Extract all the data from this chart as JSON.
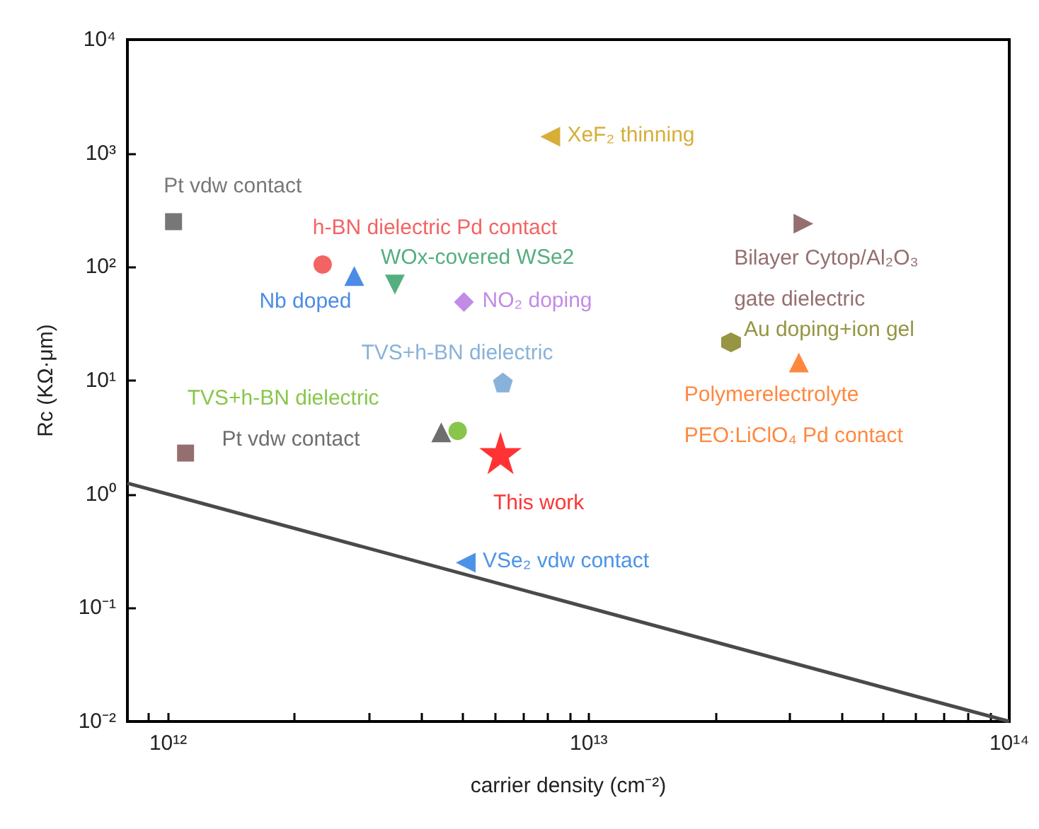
{
  "chart_data": {
    "type": "scatter",
    "xlabel": "carrier density (cm⁻²)",
    "ylabel": "Rc (KΩ·μm)",
    "log": "xy",
    "grid": false,
    "legend": false,
    "xlim": [
      800000000000.0,
      100000000000000.0
    ],
    "ylim": [
      0.01,
      10000
    ],
    "xticks": [
      {
        "value": 900000000000.0,
        "label": null
      },
      {
        "value": 1000000000000.0,
        "label": "10¹²"
      },
      {
        "value": 2000000000000.0,
        "label": null
      },
      {
        "value": 3000000000000.0,
        "label": null
      },
      {
        "value": 4000000000000.0,
        "label": null
      },
      {
        "value": 5000000000000.0,
        "label": null
      },
      {
        "value": 6000000000000.0,
        "label": null
      },
      {
        "value": 7000000000000.0,
        "label": null
      },
      {
        "value": 8000000000000.0,
        "label": null
      },
      {
        "value": 9000000000000.0,
        "label": null
      },
      {
        "value": 10000000000000.0,
        "label": "10¹³"
      },
      {
        "value": 20000000000000.0,
        "label": null
      },
      {
        "value": 30000000000000.0,
        "label": null
      },
      {
        "value": 40000000000000.0,
        "label": null
      },
      {
        "value": 50000000000000.0,
        "label": null
      },
      {
        "value": 60000000000000.0,
        "label": null
      },
      {
        "value": 70000000000000.0,
        "label": null
      },
      {
        "value": 80000000000000.0,
        "label": null
      },
      {
        "value": 90000000000000.0,
        "label": null
      },
      {
        "value": 100000000000000.0,
        "label": "10¹⁴"
      }
    ],
    "yticks": [
      {
        "value": 0.01,
        "label": "10⁻²"
      },
      {
        "value": 0.1,
        "label": "10⁻¹"
      },
      {
        "value": 1,
        "label": "10⁰"
      },
      {
        "value": 10,
        "label": "10¹"
      },
      {
        "value": 100,
        "label": "10²"
      },
      {
        "value": 1000,
        "label": "10³"
      },
      {
        "value": 10000,
        "label": "10⁴"
      }
    ],
    "series": [
      {
        "type": "line",
        "color": "#4a4a4a",
        "marker": "none",
        "line_style": "solid",
        "x": [
          800000000000.0,
          100000000000000.0
        ],
        "values": [
          1.25,
          0.01
        ]
      },
      {
        "name": "Pt vdw contact",
        "color": "#555555",
        "marker": "square",
        "x": [
          1030000000000.0
        ],
        "values": [
          250
        ]
      },
      {
        "color": "#7b4b4b",
        "marker": "square",
        "x": [
          1100000000000.0
        ],
        "values": [
          2.3
        ]
      },
      {
        "name": "h-BN dielectric Pd contact",
        "color": "#f03c3c",
        "marker": "circle",
        "x": [
          2330000000000.0
        ],
        "values": [
          105
        ]
      },
      {
        "name": "Nb doped",
        "color": "#1f6fe0",
        "marker": "triangle",
        "x": [
          2770000000000.0
        ],
        "values": [
          83
        ]
      },
      {
        "name": "WOx-covered WSe2",
        "color": "#2a9a5f",
        "marker": "triangle-down",
        "x": [
          3460000000000.0
        ],
        "values": [
          70
        ]
      },
      {
        "name": "NO₂ doping",
        "color": "#b36ee0",
        "marker": "diamond",
        "x": [
          5050000000000.0
        ],
        "values": [
          49
        ]
      },
      {
        "name": "TVS+h-BN dielectric",
        "color": "#6a9fd0",
        "x": [
          6250000000000.0
        ],
        "values": [
          9.6
        ]
      },
      {
        "name": "TVS+h-BN dielectric",
        "color": "#6ab81e",
        "marker": "circle",
        "x": [
          4880000000000.0
        ],
        "values": [
          3.6
        ]
      },
      {
        "name": "Pt vdw contact",
        "color": "#4a4a4a",
        "marker": "triangle",
        "x": [
          4460000000000.0
        ],
        "values": [
          3.5
        ]
      },
      {
        "name": "This work",
        "color": "#ff0000",
        "marker": "star",
        "x": [
          6170000000000.0
        ],
        "values": [
          2.3
        ]
      },
      {
        "name": "VSe₂ vdw contact",
        "color": "#1f78e0",
        "marker": "triangle-left",
        "x": [
          5100000000000.0
        ],
        "values": [
          0.25
        ]
      },
      {
        "name": "XeF₂ thinning",
        "color": "#cc9a06",
        "marker": "triangle-left",
        "x": [
          8100000000000.0
        ],
        "values": [
          1400
        ]
      },
      {
        "name": "Bilayer Cytop/Al₂O₃\ngate dielectric",
        "color": "#7b4b4b",
        "marker": "triangle-right",
        "x": [
          32400000000000.0
        ],
        "values": [
          240
        ]
      },
      {
        "name": "Au doping+ion gel",
        "color": "#7a7a14",
        "x": [
          21800000000000.0
        ],
        "values": [
          21.7
        ]
      },
      {
        "name": "Polymerelectrolyte\nPEO:LiClO₄ Pd contact",
        "color": "#ff6a10",
        "marker": "triangle",
        "x": [
          31600000000000.0
        ],
        "values": [
          14.4
        ]
      }
    ]
  }
}
